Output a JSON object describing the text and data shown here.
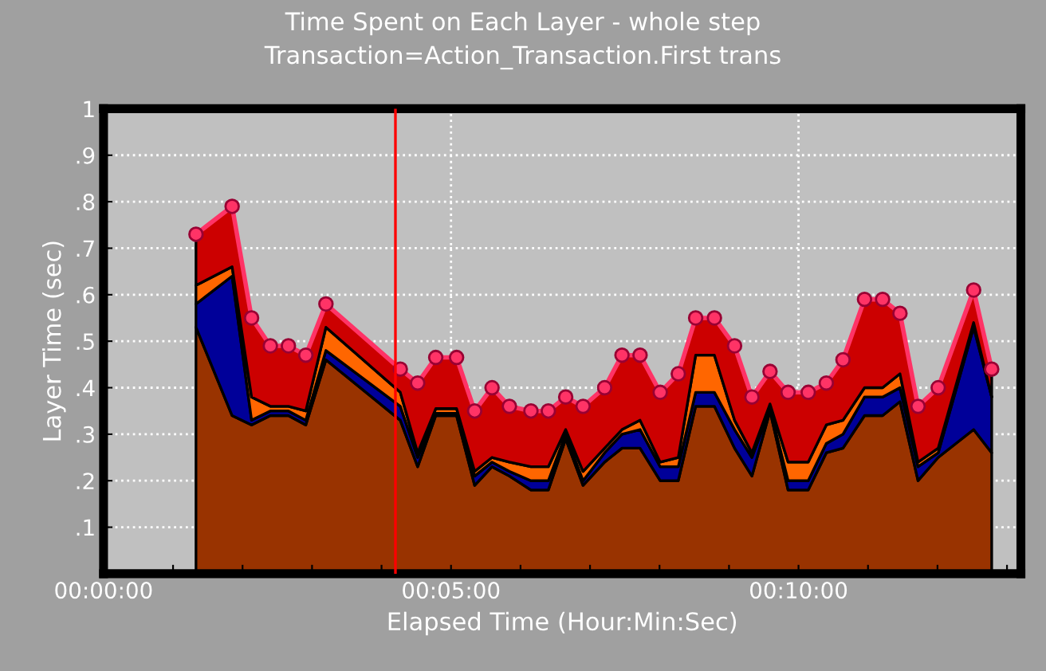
{
  "chart_data": {
    "type": "area",
    "stacked": true,
    "title": "Time Spent on Each Layer - whole step",
    "subtitle": "Transaction=Action_Transaction.First trans",
    "xlabel": "Elapsed Time (Hour:Min:Sec)",
    "ylabel": "Layer Time (sec)",
    "x": [
      1.33,
      1.85,
      2.13,
      2.4,
      2.66,
      2.91,
      3.2,
      4.27,
      4.52,
      4.78,
      5.08,
      5.34,
      5.59,
      5.84,
      6.15,
      6.4,
      6.65,
      6.9,
      7.21,
      7.46,
      7.72,
      8.01,
      8.27,
      8.52,
      8.79,
      9.08,
      9.33,
      9.59,
      9.85,
      10.14,
      10.4,
      10.64,
      10.95,
      11.21,
      11.46,
      11.72,
      12.01,
      12.52,
      12.78
    ],
    "series": [
      {
        "color": "#993300",
        "values": [
          0.53,
          0.34,
          0.32,
          0.34,
          0.34,
          0.32,
          0.46,
          0.33,
          0.23,
          0.34,
          0.34,
          0.19,
          0.23,
          0.21,
          0.18,
          0.18,
          0.29,
          0.19,
          0.24,
          0.27,
          0.27,
          0.2,
          0.2,
          0.36,
          0.36,
          0.27,
          0.21,
          0.35,
          0.18,
          0.18,
          0.26,
          0.27,
          0.34,
          0.34,
          0.37,
          0.2,
          0.25,
          0.31,
          0.26
        ]
      },
      {
        "color": "#000099",
        "values": [
          0.05,
          0.3,
          0.01,
          0.01,
          0.01,
          0.01,
          0.02,
          0.03,
          0.02,
          0.005,
          0.005,
          0.02,
          0.01,
          0.01,
          0.02,
          0.02,
          0.01,
          0.01,
          0.02,
          0.03,
          0.04,
          0.03,
          0.03,
          0.03,
          0.03,
          0.04,
          0.04,
          0.005,
          0.02,
          0.02,
          0.02,
          0.03,
          0.04,
          0.04,
          0.03,
          0.03,
          0.01,
          0.22,
          0.12
        ]
      },
      {
        "color": "#ff6600",
        "values": [
          0.04,
          0.02,
          0.05,
          0.01,
          0.01,
          0.02,
          0.05,
          0.03,
          0.01,
          0.01,
          0.01,
          0.01,
          0.01,
          0.02,
          0.03,
          0.03,
          0.01,
          0.02,
          0.01,
          0.01,
          0.02,
          0.01,
          0.02,
          0.08,
          0.08,
          0.02,
          0.01,
          0.01,
          0.04,
          0.04,
          0.04,
          0.03,
          0.02,
          0.02,
          0.03,
          0.01,
          0.01,
          0.01,
          0.0
        ]
      },
      {
        "color": "#cc0000",
        "marker": "circle",
        "values": [
          0.11,
          0.13,
          0.17,
          0.13,
          0.13,
          0.12,
          0.05,
          0.05,
          0.15,
          0.11,
          0.11,
          0.13,
          0.15,
          0.12,
          0.12,
          0.12,
          0.07,
          0.14,
          0.13,
          0.16,
          0.14,
          0.15,
          0.18,
          0.08,
          0.08,
          0.16,
          0.12,
          0.07,
          0.15,
          0.15,
          0.09,
          0.13,
          0.19,
          0.19,
          0.13,
          0.12,
          0.13,
          0.07,
          0.06
        ]
      }
    ],
    "xlim": [
      0,
      13.2
    ],
    "xticks": [
      {
        "value": 0,
        "label": "00:00:00"
      },
      {
        "value": 1,
        "label": null
      },
      {
        "value": 2,
        "label": null
      },
      {
        "value": 3,
        "label": null
      },
      {
        "value": 4,
        "label": null
      },
      {
        "value": 5,
        "label": "00:05:00"
      },
      {
        "value": 6,
        "label": null
      },
      {
        "value": 7,
        "label": null
      },
      {
        "value": 8,
        "label": null
      },
      {
        "value": 9,
        "label": null
      },
      {
        "value": 10,
        "label": "00:10:00"
      },
      {
        "value": 11,
        "label": null
      },
      {
        "value": 12,
        "label": null
      },
      {
        "value": 13,
        "label": null
      }
    ],
    "ylim": [
      0,
      1
    ],
    "yticks": [
      {
        "value": 0,
        "label": null
      },
      {
        "value": 0.1,
        "label": ".1"
      },
      {
        "value": 0.2,
        "label": ".2"
      },
      {
        "value": 0.3,
        "label": ".3"
      },
      {
        "value": 0.4,
        "label": ".4"
      },
      {
        "value": 0.5,
        "label": ".5"
      },
      {
        "value": 0.6,
        "label": ".6"
      },
      {
        "value": 0.7,
        "label": ".7"
      },
      {
        "value": 0.8,
        "label": ".8"
      },
      {
        "value": 0.9,
        "label": ".9"
      },
      1
    ],
    "grid": true,
    "ref_lines": [
      {
        "axis": "x",
        "value": 4.2,
        "color": "#ff0000"
      }
    ]
  }
}
